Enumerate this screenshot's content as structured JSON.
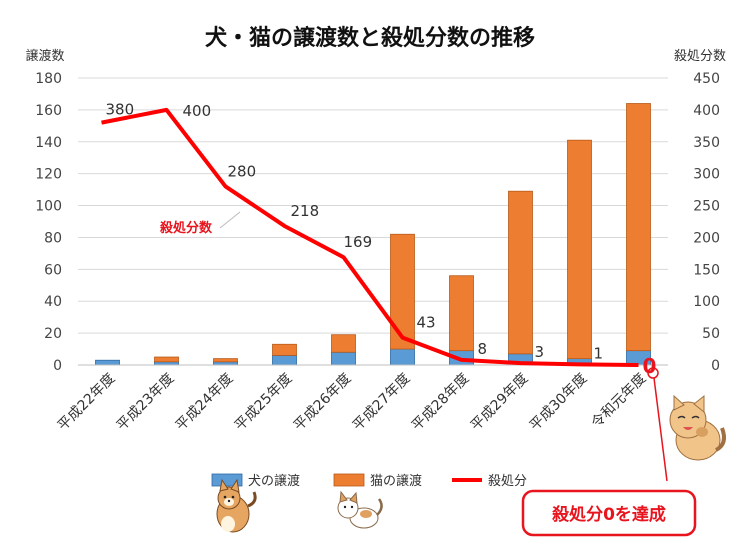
{
  "chart_data": {
    "type": "bar",
    "stacked": true,
    "title": "犬・猫の譲渡数と殺処分数の推移",
    "ylabel_left": "譲渡数",
    "ylabel_right": "殺処分数",
    "ylim_left": [
      0,
      180
    ],
    "yticks_left": [
      0,
      20,
      40,
      60,
      80,
      100,
      120,
      140,
      160,
      180
    ],
    "ylim_right": [
      0,
      450
    ],
    "yticks_right": [
      0,
      50,
      100,
      150,
      200,
      250,
      300,
      350,
      400,
      450
    ],
    "categories": [
      "平成22年度",
      "平成23年度",
      "平成24年度",
      "平成25年度",
      "平成26年度",
      "平成27年度",
      "平成28年度",
      "平成29年度",
      "平成30年度",
      "令和元年度"
    ],
    "series": [
      {
        "name": "犬の譲渡",
        "type": "bar",
        "axis": "left",
        "color": "#5b9bd5",
        "values": [
          3,
          2,
          2,
          6,
          8,
          10,
          9,
          7,
          4,
          9
        ]
      },
      {
        "name": "猫の譲渡",
        "type": "bar",
        "axis": "left",
        "color": "#ed7d31",
        "values": [
          0,
          3,
          2,
          7,
          11,
          72,
          47,
          102,
          137,
          155
        ]
      },
      {
        "name": "殺処分",
        "type": "line",
        "axis": "right",
        "color": "#ff0000",
        "values": [
          380,
          400,
          280,
          218,
          169,
          43,
          8,
          3,
          1,
          0
        ],
        "labels": [
          "380",
          "400",
          "280",
          "218",
          "169",
          "43",
          "8",
          "3",
          "1",
          "0"
        ]
      }
    ],
    "annotations": {
      "line_label": "殺処分数",
      "callout": "殺処分0を達成"
    },
    "grid": true,
    "legend": "bottom"
  }
}
